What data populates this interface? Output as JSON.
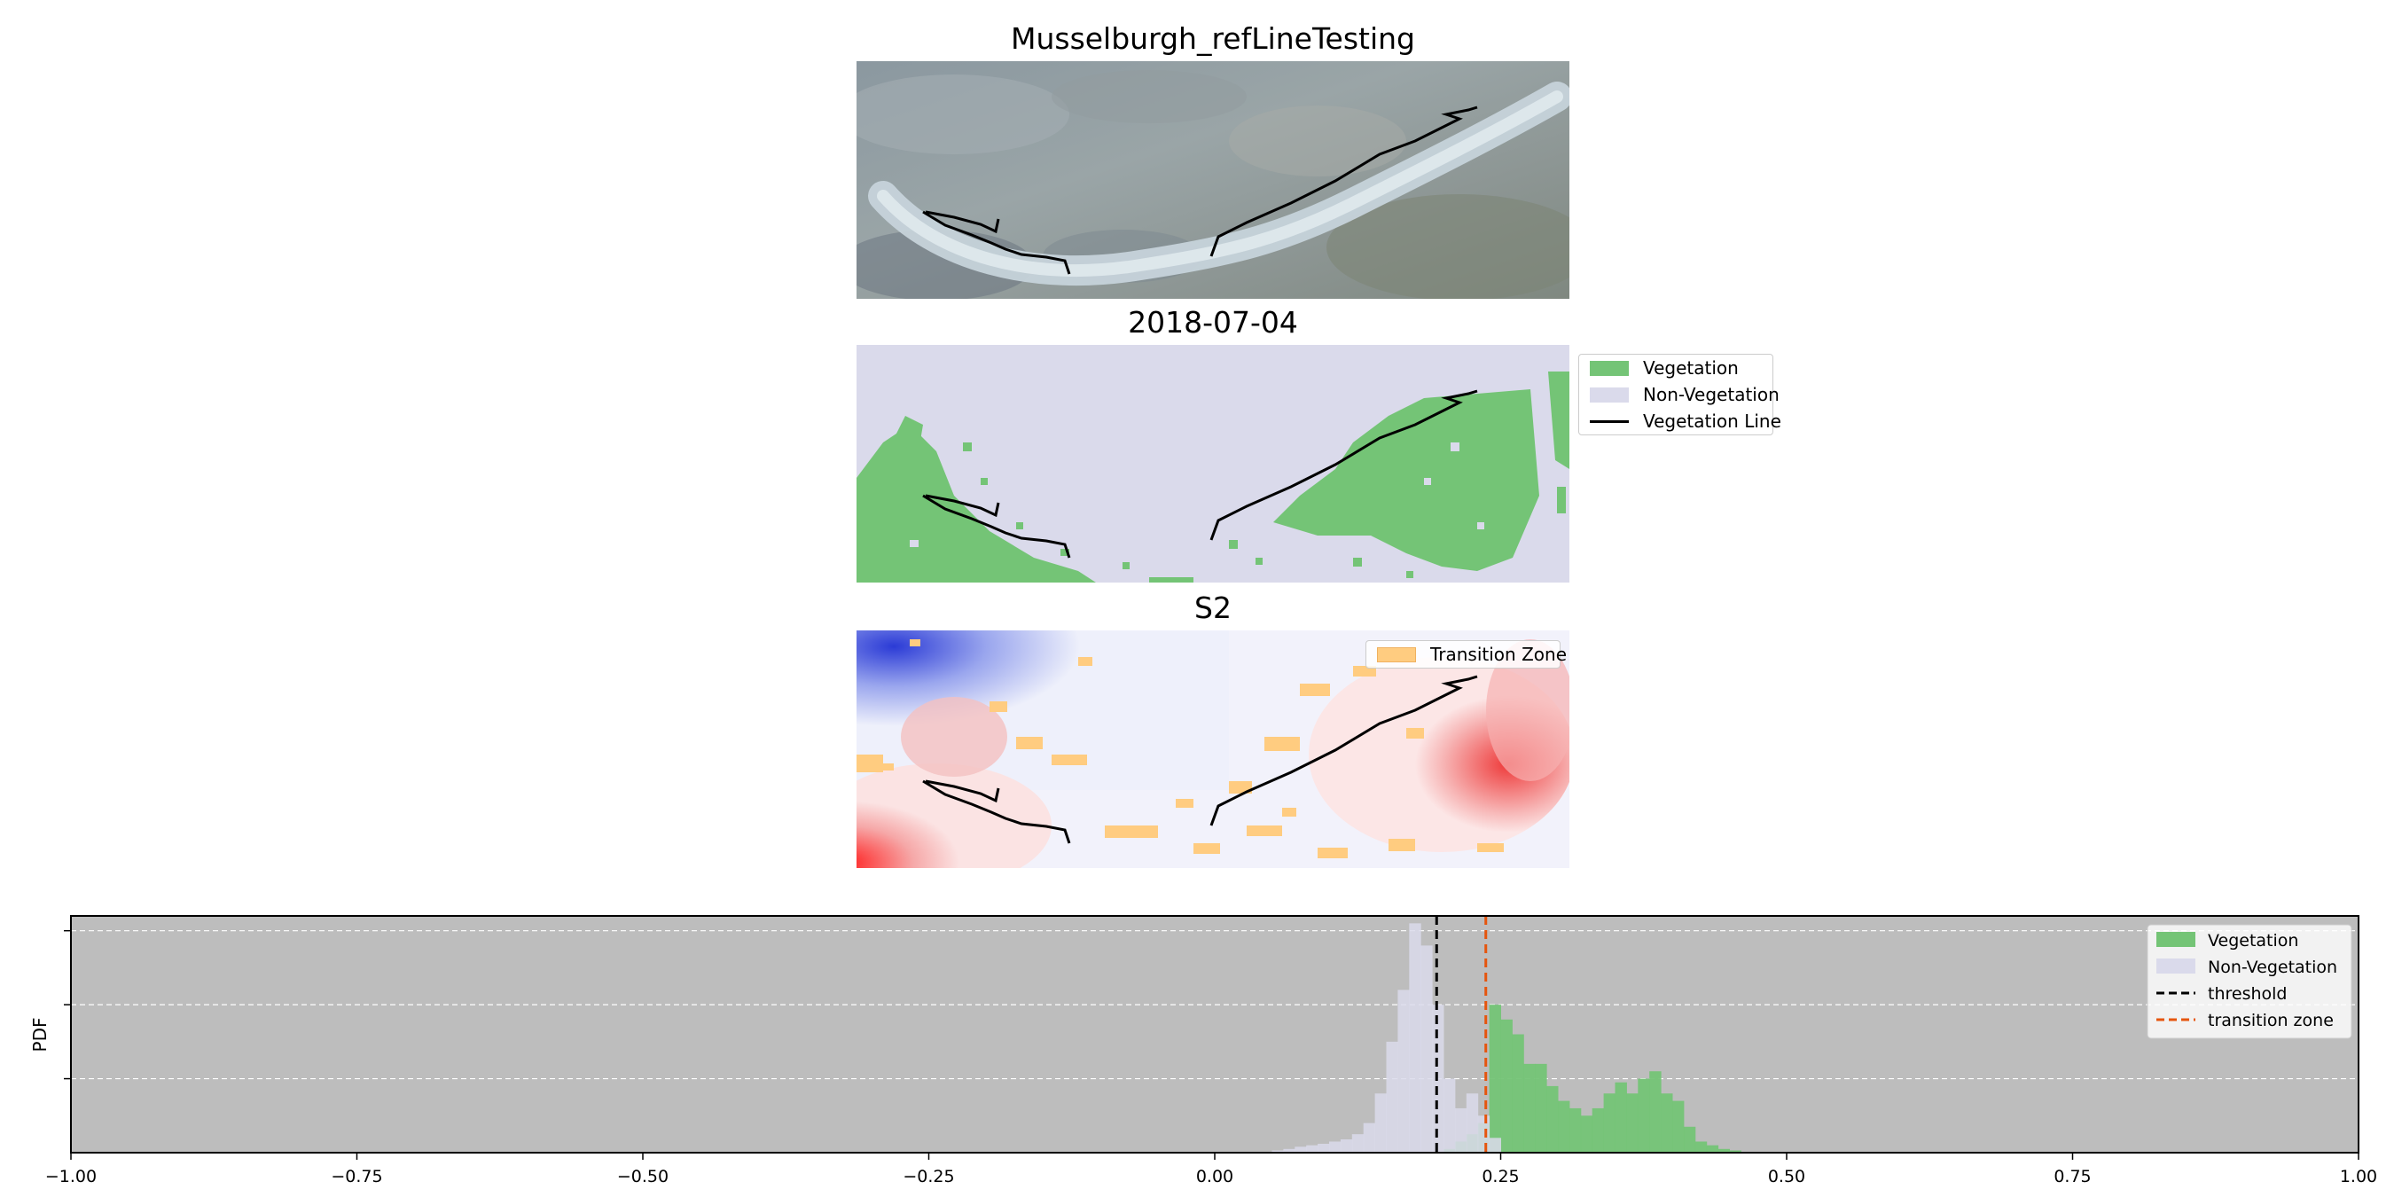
{
  "figure": {
    "panels": [
      {
        "title": "Musselburgh_refLineTesting",
        "kind": "true-color"
      },
      {
        "title": "2018-07-04",
        "kind": "classification"
      },
      {
        "title": "S2",
        "kind": "ndvi"
      }
    ],
    "class_legend": [
      {
        "label": "Vegetation",
        "style": "patch",
        "color": "#74c476"
      },
      {
        "label": "Non-Vegetation",
        "style": "patch",
        "color": "#dadaeb"
      },
      {
        "label": "Vegetation Line",
        "style": "line",
        "color": "#000000"
      }
    ],
    "transition_legend": {
      "label": "Transition Zone",
      "color": "#ffcc80"
    }
  },
  "chart_data": {
    "type": "bar",
    "subtype": "histogram",
    "title": "",
    "xlabel": "",
    "ylabel": "PDF",
    "xlim": [
      -1.0,
      1.0
    ],
    "xticks": [
      "−1.00",
      "−0.75",
      "−0.50",
      "−0.25",
      "0.00",
      "0.25",
      "0.50",
      "0.75",
      "1.00"
    ],
    "xtick_values": [
      -1.0,
      -0.75,
      -0.5,
      -0.25,
      0.0,
      0.25,
      0.5,
      0.75,
      1.0
    ],
    "ylim": [
      0,
      32
    ],
    "yticks": [
      10,
      20,
      30
    ],
    "grid": "horizontal, dashed white",
    "background": "#bdbdbd",
    "legend_position": "top-right",
    "bin_width": 0.01,
    "series": [
      {
        "name": "Non-Vegetation",
        "color": "#dadaeb",
        "bin_starts": [
          0.05,
          0.06,
          0.07,
          0.08,
          0.09,
          0.1,
          0.11,
          0.12,
          0.13,
          0.14,
          0.15,
          0.16,
          0.17,
          0.18,
          0.19,
          0.2,
          0.21,
          0.22,
          0.23,
          0.24
        ],
        "values": [
          0.3,
          0.5,
          0.8,
          1.0,
          1.2,
          1.5,
          1.8,
          2.5,
          4.0,
          8.0,
          15.0,
          22.0,
          31.0,
          28.0,
          20.0,
          10.0,
          6.0,
          8.0,
          5.0,
          2.0
        ]
      },
      {
        "name": "Vegetation",
        "color": "#74c476",
        "bin_starts": [
          0.2,
          0.21,
          0.22,
          0.23,
          0.24,
          0.25,
          0.26,
          0.27,
          0.28,
          0.29,
          0.3,
          0.31,
          0.32,
          0.33,
          0.34,
          0.35,
          0.36,
          0.37,
          0.38,
          0.39,
          0.4,
          0.41,
          0.42,
          0.43,
          0.44,
          0.45
        ],
        "values": [
          0.5,
          1.5,
          2.5,
          4.0,
          20.0,
          18.0,
          16.0,
          12.0,
          12.0,
          9.0,
          7.0,
          6.0,
          5.0,
          6.0,
          8.0,
          9.5,
          8.0,
          10.0,
          11.0,
          8.0,
          7.0,
          3.5,
          1.5,
          1.0,
          0.5,
          0.3
        ]
      }
    ],
    "vlines": [
      {
        "name": "threshold",
        "x": 0.194,
        "color": "#000000",
        "style": "dashed"
      },
      {
        "name": "transition zone",
        "x": 0.237,
        "color": "#e6550d",
        "style": "dashed"
      }
    ]
  }
}
